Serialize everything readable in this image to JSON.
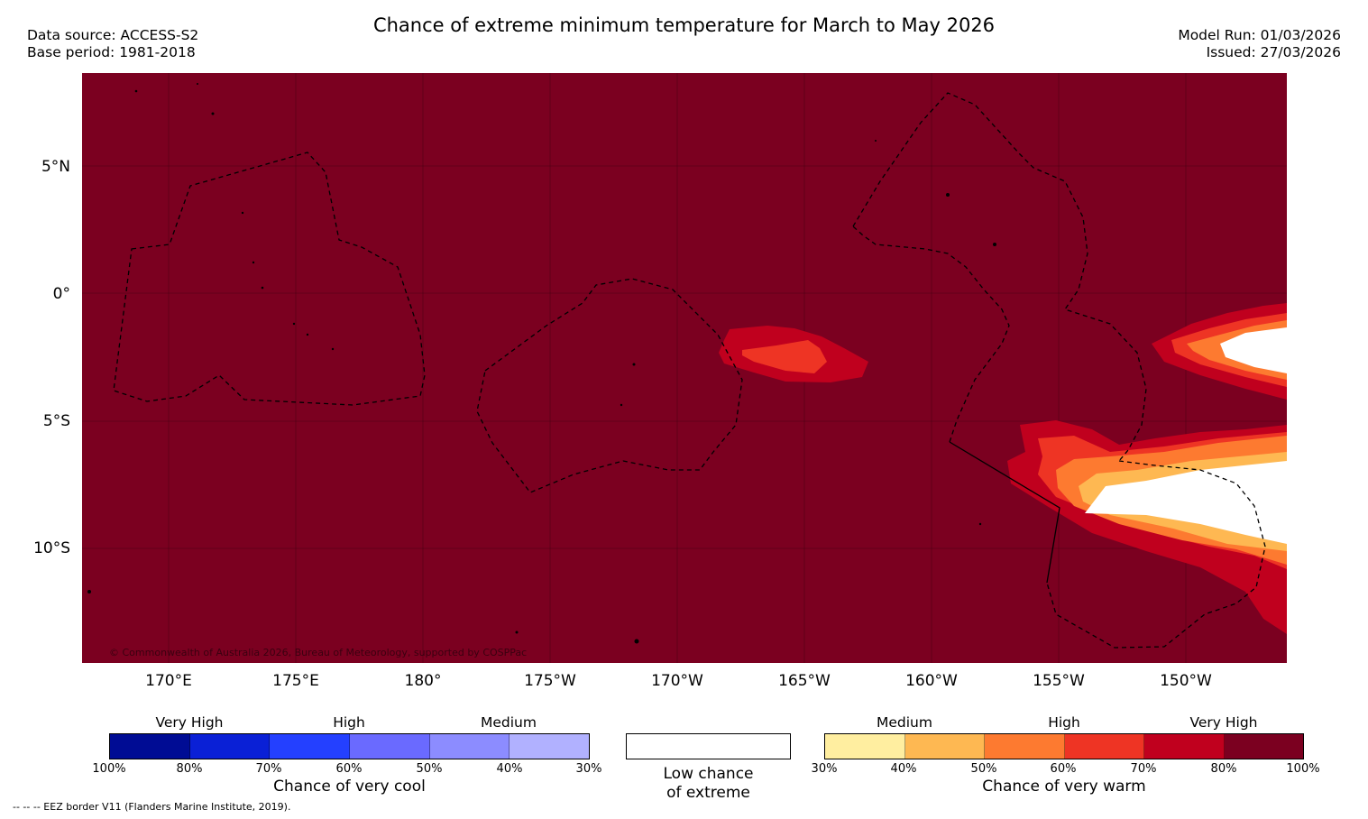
{
  "title": "Chance of extreme minimum temperature for March to May 2026",
  "data_source": "Data source: ACCESS-S2",
  "base_period": "Base period: 1981-2018",
  "model_run": "Model Run: 01/03/2026",
  "issued": "Issued: 27/03/2026",
  "map": {
    "background_color": "#7b0020",
    "copyright": "© Commonwealth of Australia 2026, Bureau of Meteorology, supported by COSPPac",
    "lat_labels": [
      "5°N",
      "0°",
      "5°S",
      "10°S"
    ],
    "lon_labels": [
      "170°E",
      "175°E",
      "180°",
      "175°W",
      "170°W",
      "165°W",
      "160°W",
      "155°W",
      "150°W"
    ]
  },
  "legend_cool": {
    "title": "Chance of very cool",
    "categories": [
      "Very High",
      "High",
      "Medium"
    ],
    "ticks": [
      "100%",
      "80%",
      "70%",
      "60%",
      "50%",
      "40%",
      "30%"
    ],
    "colors": [
      "#000c94",
      "#0a20d6",
      "#2440ff",
      "#6a6aff",
      "#8c8cff",
      "#b1b1ff"
    ]
  },
  "legend_low": {
    "label_line1": "Low chance",
    "label_line2": "of extreme"
  },
  "legend_warm": {
    "title": "Chance of very warm",
    "categories": [
      "Medium",
      "High",
      "Very High"
    ],
    "ticks": [
      "30%",
      "40%",
      "50%",
      "60%",
      "70%",
      "80%",
      "100%"
    ],
    "colors": [
      "#ffeea0",
      "#feb852",
      "#fd7a30",
      "#ee3424",
      "#c0001e",
      "#7b0020"
    ]
  },
  "eez_note": "--  --  -- EEZ border V11 (Flanders Marine Institute, 2019)."
}
